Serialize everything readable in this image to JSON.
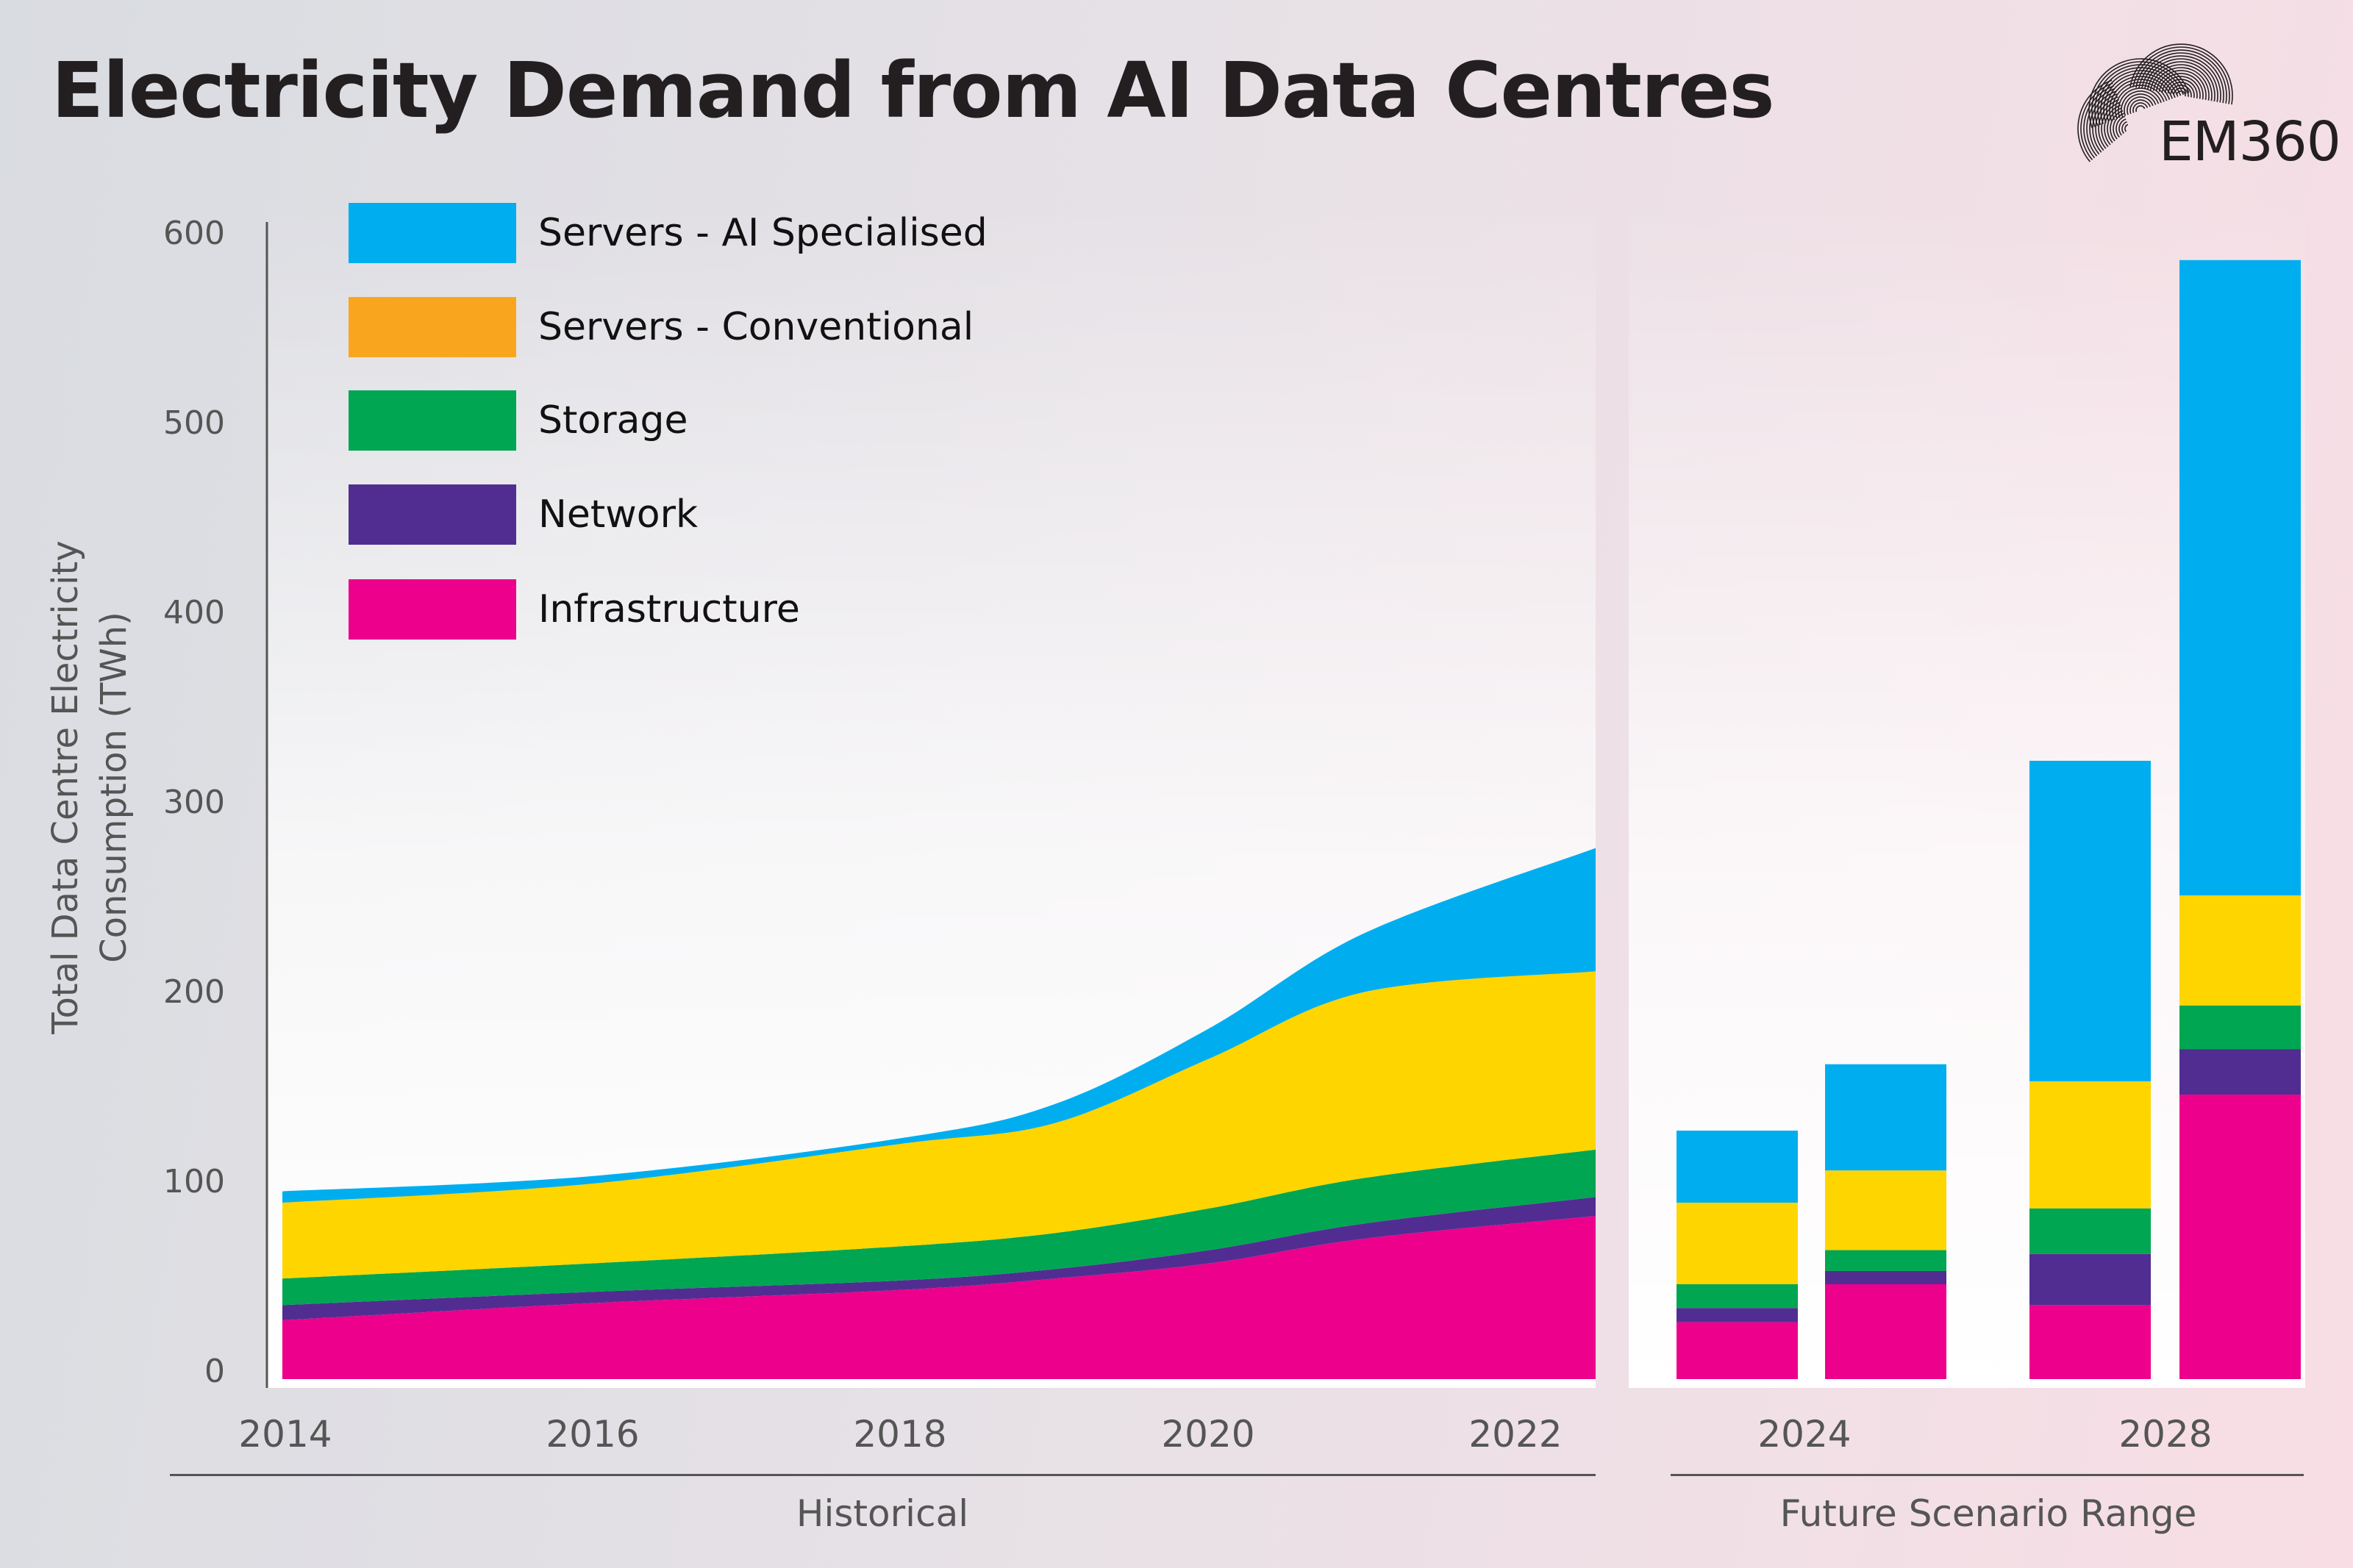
{
  "title": "Electricity Demand from AI Data Centres",
  "logo": {
    "text": "EM360"
  },
  "colors": {
    "ai": "#00aeef",
    "conventional": "#ffd500",
    "conventional_legend": "#f9a61e",
    "storage": "#00a651",
    "network": "#522d91",
    "infrastructure": "#ec008c"
  },
  "legend": [
    {
      "key": "ai",
      "label": "Servers - AI Specialised"
    },
    {
      "key": "conventional",
      "label": "Servers - Conventional"
    },
    {
      "key": "storage",
      "label": "Storage"
    },
    {
      "key": "network",
      "label": "Network"
    },
    {
      "key": "infrastructure",
      "label": "Infrastructure"
    }
  ],
  "chart_data": [
    {
      "type": "area",
      "stacked": true,
      "section_label": "Historical",
      "ylabel": "Total Data Centre Electricity Consumption (TWh)",
      "ylim": [
        0,
        600
      ],
      "yticks": [
        "0",
        "100",
        "200",
        "300",
        "400",
        "500",
        "600"
      ],
      "xlim": [
        2013.9,
        2022.5
      ],
      "xticks": [
        "2014",
        "2016",
        "2018",
        "2020",
        "2022"
      ],
      "x": [
        2014,
        2016,
        2018,
        2019,
        2020,
        2021,
        2022.5
      ],
      "series": [
        {
          "key": "infrastructure",
          "name": "Infrastructure",
          "values": [
            31,
            40,
            47,
            53,
            61,
            74,
            86
          ]
        },
        {
          "key": "network",
          "name": "Network",
          "values": [
            8,
            6,
            5,
            5,
            7,
            8,
            10
          ]
        },
        {
          "key": "storage",
          "name": "Storage",
          "values": [
            14,
            15,
            18,
            19,
            22,
            24,
            25
          ]
        },
        {
          "key": "conventional",
          "name": "Servers - Conventional",
          "values": [
            40,
            42,
            54,
            58,
            79,
            98,
            94
          ]
        },
        {
          "key": "ai",
          "name": "Servers - AI Specialised",
          "values": [
            6,
            4,
            3,
            10,
            16,
            31,
            65
          ]
        }
      ],
      "grid": false
    },
    {
      "type": "bar",
      "stacked": true,
      "section_label": "Future Scenario Range",
      "ylim": [
        0,
        600
      ],
      "groups": [
        {
          "label": "2024",
          "bars": [
            {
              "infrastructure": 30,
              "network": 7.5,
              "storage": 12.5,
              "conventional": 43,
              "ai": 38
            },
            {
              "infrastructure": 50,
              "network": 7,
              "storage": 11,
              "conventional": 42,
              "ai": 56
            }
          ]
        },
        {
          "label": "2028",
          "bars": [
            {
              "infrastructure": 39,
              "network": 27,
              "storage": 24,
              "conventional": 67,
              "ai": 169
            },
            {
              "infrastructure": 150,
              "network": 24,
              "storage": 23,
              "conventional": 58,
              "ai": 335
            }
          ]
        }
      ],
      "grid": false
    }
  ]
}
